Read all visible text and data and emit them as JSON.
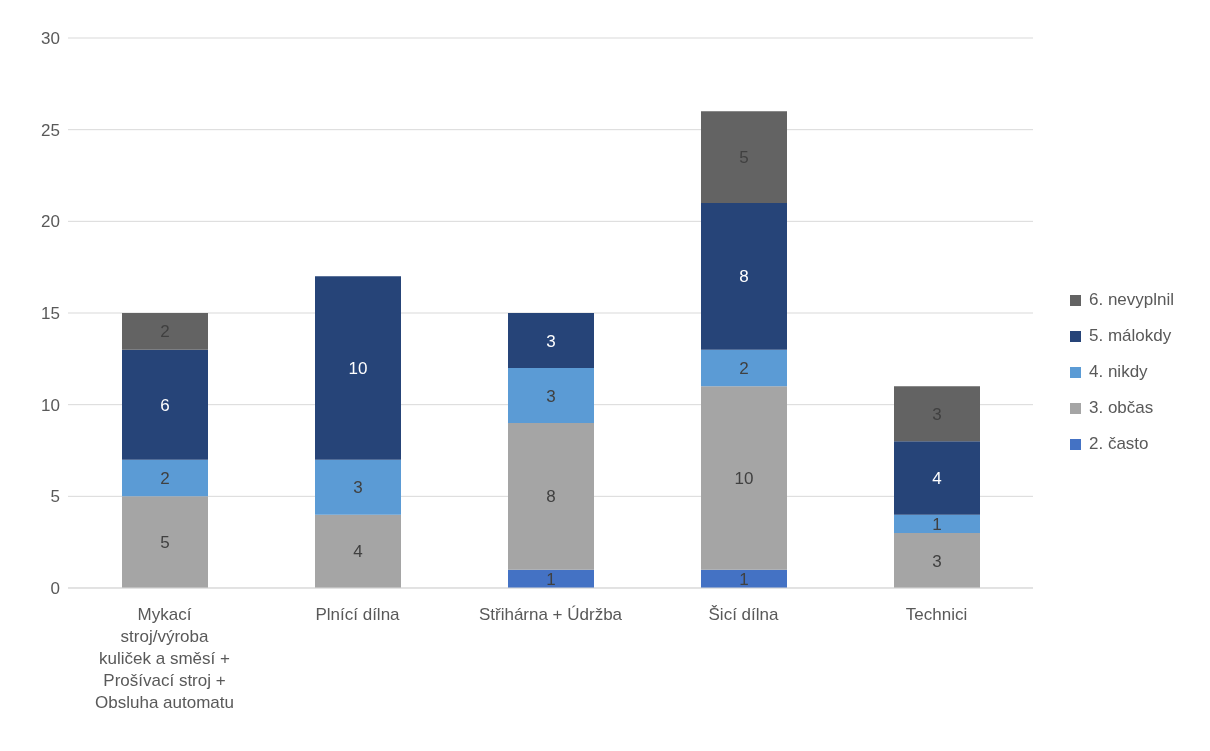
{
  "chart_data": {
    "type": "bar",
    "stacked": true,
    "categories": [
      "Mykací stroj/výroba kuliček a směsí + Prošívací stroj + Obsluha automatu",
      "Plnící dílna",
      "Střihárna + Údržba",
      "Šicí dílna",
      "Technici"
    ],
    "series": [
      {
        "name": "2. často",
        "color": "#4472c4",
        "values": [
          null,
          null,
          1,
          1,
          null
        ]
      },
      {
        "name": "3. občas",
        "color": "#a5a5a5",
        "values": [
          5,
          4,
          8,
          10,
          3
        ]
      },
      {
        "name": "4. nikdy",
        "color": "#5b9bd5",
        "values": [
          2,
          3,
          3,
          2,
          1
        ]
      },
      {
        "name": "5. málokdy",
        "color": "#264478",
        "values": [
          6,
          10,
          3,
          8,
          4
        ]
      },
      {
        "name": "6. nevyplnil",
        "color": "#636363",
        "values": [
          2,
          null,
          null,
          5,
          3
        ]
      }
    ],
    "ylim": [
      0,
      30
    ],
    "yticks": [
      0,
      5,
      10,
      15,
      20,
      25,
      30
    ],
    "grid": "y",
    "legend": "right",
    "data_labels": true
  }
}
